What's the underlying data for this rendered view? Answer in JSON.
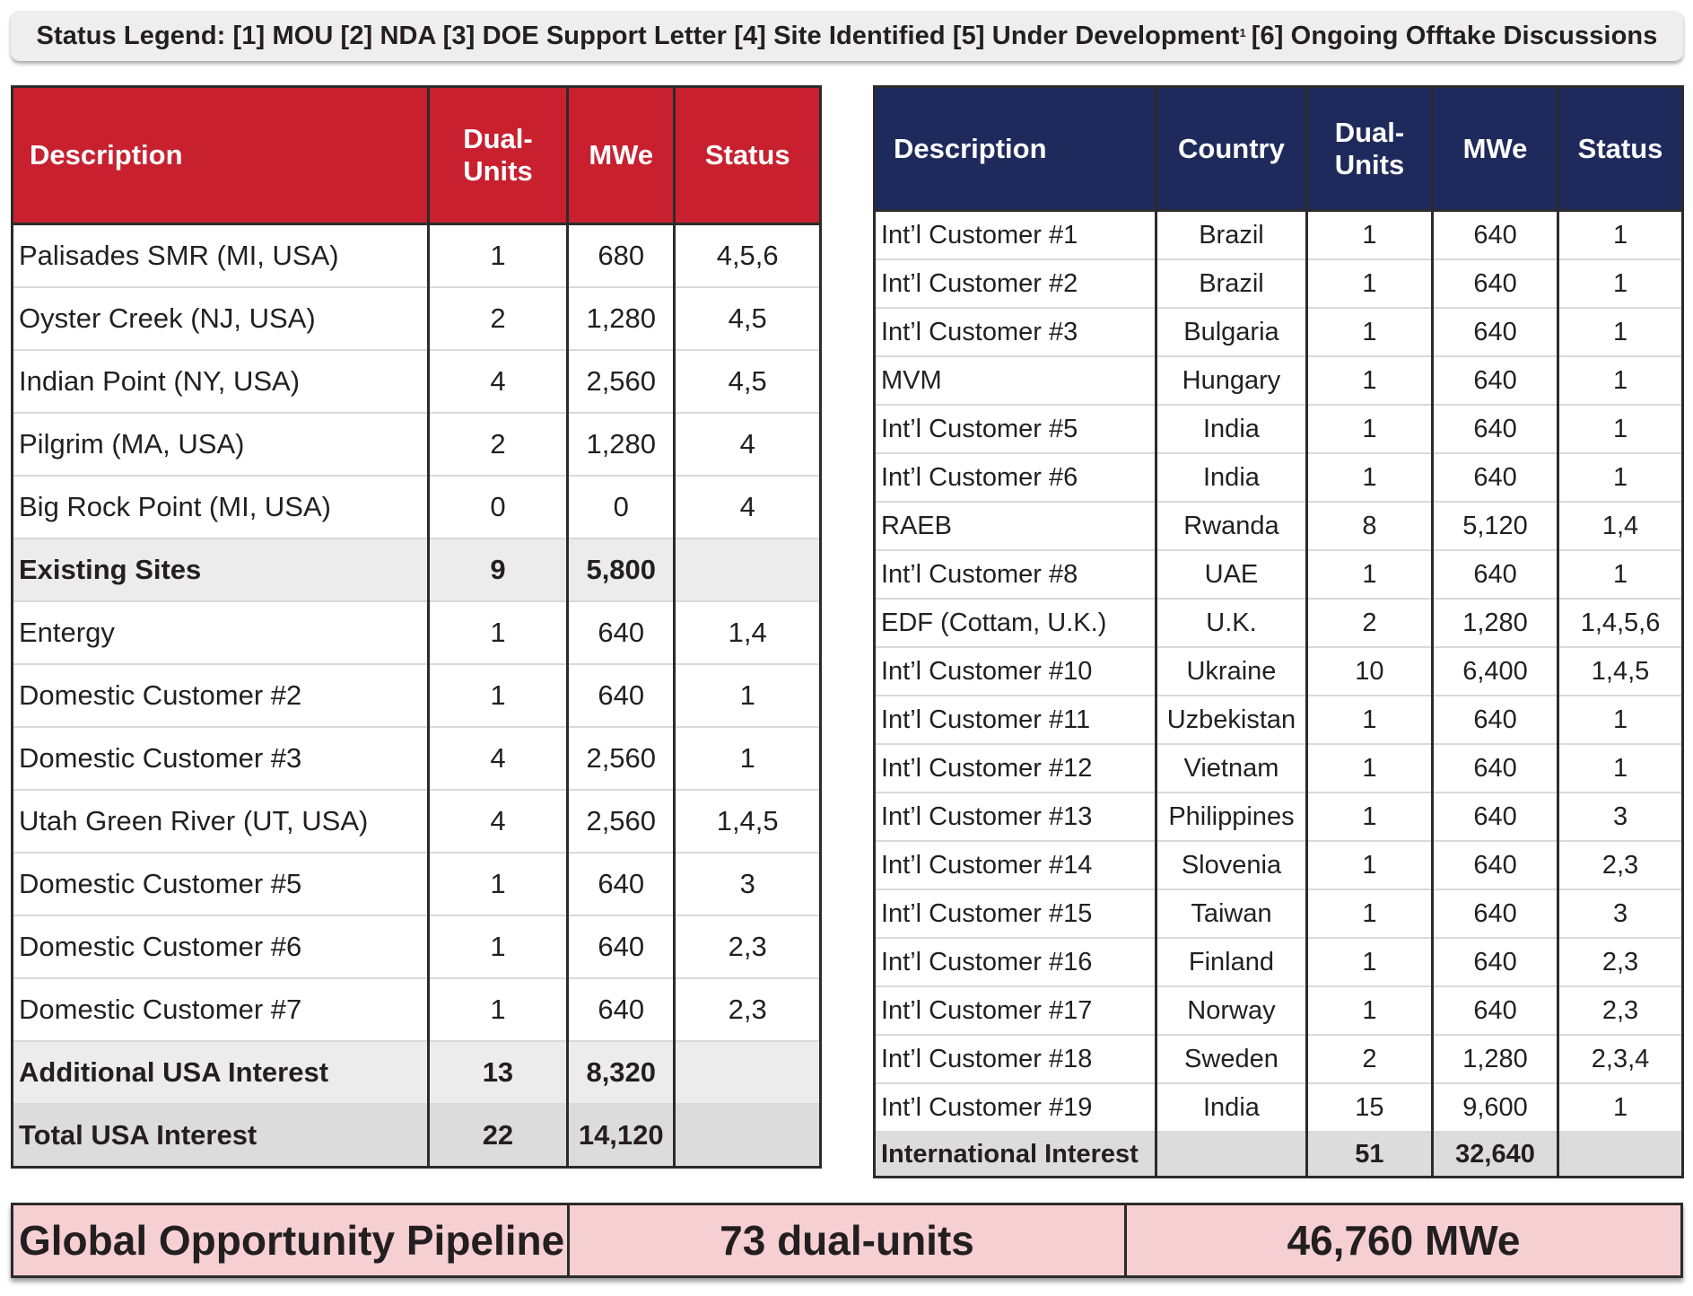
{
  "legend": {
    "prefix": "Status Legend: [1] MOU [2] NDA [3] DOE Support Letter [4] Site Identified [5] Under Development",
    "footnote": "1",
    "suffix": "[6] Ongoing Offtake Discussions"
  },
  "usa_table": {
    "headers": [
      "Description",
      "Dual-Units",
      "MWe",
      "Status"
    ],
    "header_color": "#c8202f",
    "rows": [
      {
        "description": "Palisades SMR (MI, USA)",
        "units": "1",
        "mwe": "680",
        "status": "4,5,6"
      },
      {
        "description": "Oyster Creek (NJ, USA)",
        "units": "2",
        "mwe": "1,280",
        "status": "4,5"
      },
      {
        "description": "Indian Point (NY, USA)",
        "units": "4",
        "mwe": "2,560",
        "status": "4,5"
      },
      {
        "description": "Pilgrim (MA, USA)",
        "units": "2",
        "mwe": "1,280",
        "status": "4"
      },
      {
        "description": "Big Rock Point (MI, USA)",
        "units": "0",
        "mwe": "0",
        "status": "4"
      },
      {
        "description": "Existing Sites",
        "units": "9",
        "mwe": "5,800",
        "status": "",
        "type": "sub"
      },
      {
        "description": "Entergy",
        "units": "1",
        "mwe": "640",
        "status": "1,4"
      },
      {
        "description": "Domestic Customer #2",
        "units": "1",
        "mwe": "640",
        "status": "1"
      },
      {
        "description": "Domestic Customer #3",
        "units": "4",
        "mwe": "2,560",
        "status": "1"
      },
      {
        "description": "Utah Green River (UT, USA)",
        "units": "4",
        "mwe": "2,560",
        "status": "1,4,5"
      },
      {
        "description": "Domestic Customer #5",
        "units": "1",
        "mwe": "640",
        "status": "3"
      },
      {
        "description": "Domestic Customer #6",
        "units": "1",
        "mwe": "640",
        "status": "2,3"
      },
      {
        "description": "Domestic Customer #7",
        "units": "1",
        "mwe": "640",
        "status": "2,3"
      },
      {
        "description": "Additional USA Interest",
        "units": "13",
        "mwe": "8,320",
        "status": "",
        "type": "sub"
      },
      {
        "description": "Total USA Interest",
        "units": "22",
        "mwe": "14,120",
        "status": "",
        "type": "total"
      }
    ]
  },
  "intl_table": {
    "headers": [
      "Description",
      "Country",
      "Dual-Units",
      "MWe",
      "Status"
    ],
    "header_color": "#1f2a5c",
    "rows": [
      {
        "description": "Int’l Customer #1",
        "country": "Brazil",
        "units": "1",
        "mwe": "640",
        "status": "1"
      },
      {
        "description": "Int’l Customer #2",
        "country": "Brazil",
        "units": "1",
        "mwe": "640",
        "status": "1"
      },
      {
        "description": "Int’l Customer #3",
        "country": "Bulgaria",
        "units": "1",
        "mwe": "640",
        "status": "1"
      },
      {
        "description": "MVM",
        "country": "Hungary",
        "units": "1",
        "mwe": "640",
        "status": "1"
      },
      {
        "description": "Int’l Customer #5",
        "country": "India",
        "units": "1",
        "mwe": "640",
        "status": "1"
      },
      {
        "description": "Int’l Customer #6",
        "country": "India",
        "units": "1",
        "mwe": "640",
        "status": "1"
      },
      {
        "description": "RAEB",
        "country": "Rwanda",
        "units": "8",
        "mwe": "5,120",
        "status": "1,4"
      },
      {
        "description": "Int’l Customer #8",
        "country": "UAE",
        "units": "1",
        "mwe": "640",
        "status": "1"
      },
      {
        "description": "EDF (Cottam, U.K.)",
        "country": "U.K.",
        "units": "2",
        "mwe": "1,280",
        "status": "1,4,5,6"
      },
      {
        "description": "Int’l Customer #10",
        "country": "Ukraine",
        "units": "10",
        "mwe": "6,400",
        "status": "1,4,5"
      },
      {
        "description": "Int’l Customer #11",
        "country": "Uzbekistan",
        "units": "1",
        "mwe": "640",
        "status": "1"
      },
      {
        "description": "Int’l Customer #12",
        "country": "Vietnam",
        "units": "1",
        "mwe": "640",
        "status": "1"
      },
      {
        "description": "Int’l Customer #13",
        "country": "Philippines",
        "units": "1",
        "mwe": "640",
        "status": "3"
      },
      {
        "description": "Int’l Customer #14",
        "country": "Slovenia",
        "units": "1",
        "mwe": "640",
        "status": "2,3"
      },
      {
        "description": "Int’l Customer #15",
        "country": "Taiwan",
        "units": "1",
        "mwe": "640",
        "status": "3"
      },
      {
        "description": "Int’l Customer #16",
        "country": "Finland",
        "units": "1",
        "mwe": "640",
        "status": "2,3"
      },
      {
        "description": "Int’l Customer #17",
        "country": "Norway",
        "units": "1",
        "mwe": "640",
        "status": "2,3"
      },
      {
        "description": "Int’l Customer #18",
        "country": "Sweden",
        "units": "2",
        "mwe": "1,280",
        "status": "2,3,4"
      },
      {
        "description": "Int’l Customer #19",
        "country": "India",
        "units": "15",
        "mwe": "9,600",
        "status": "1"
      },
      {
        "description": "International Interest",
        "country": "",
        "units": "51",
        "mwe": "32,640",
        "status": "",
        "type": "total"
      }
    ]
  },
  "pipeline": {
    "label": "Global Opportunity Pipeline",
    "units": "73 dual-units",
    "mwe": "46,760 MWe",
    "background": "#f6cfd3"
  }
}
